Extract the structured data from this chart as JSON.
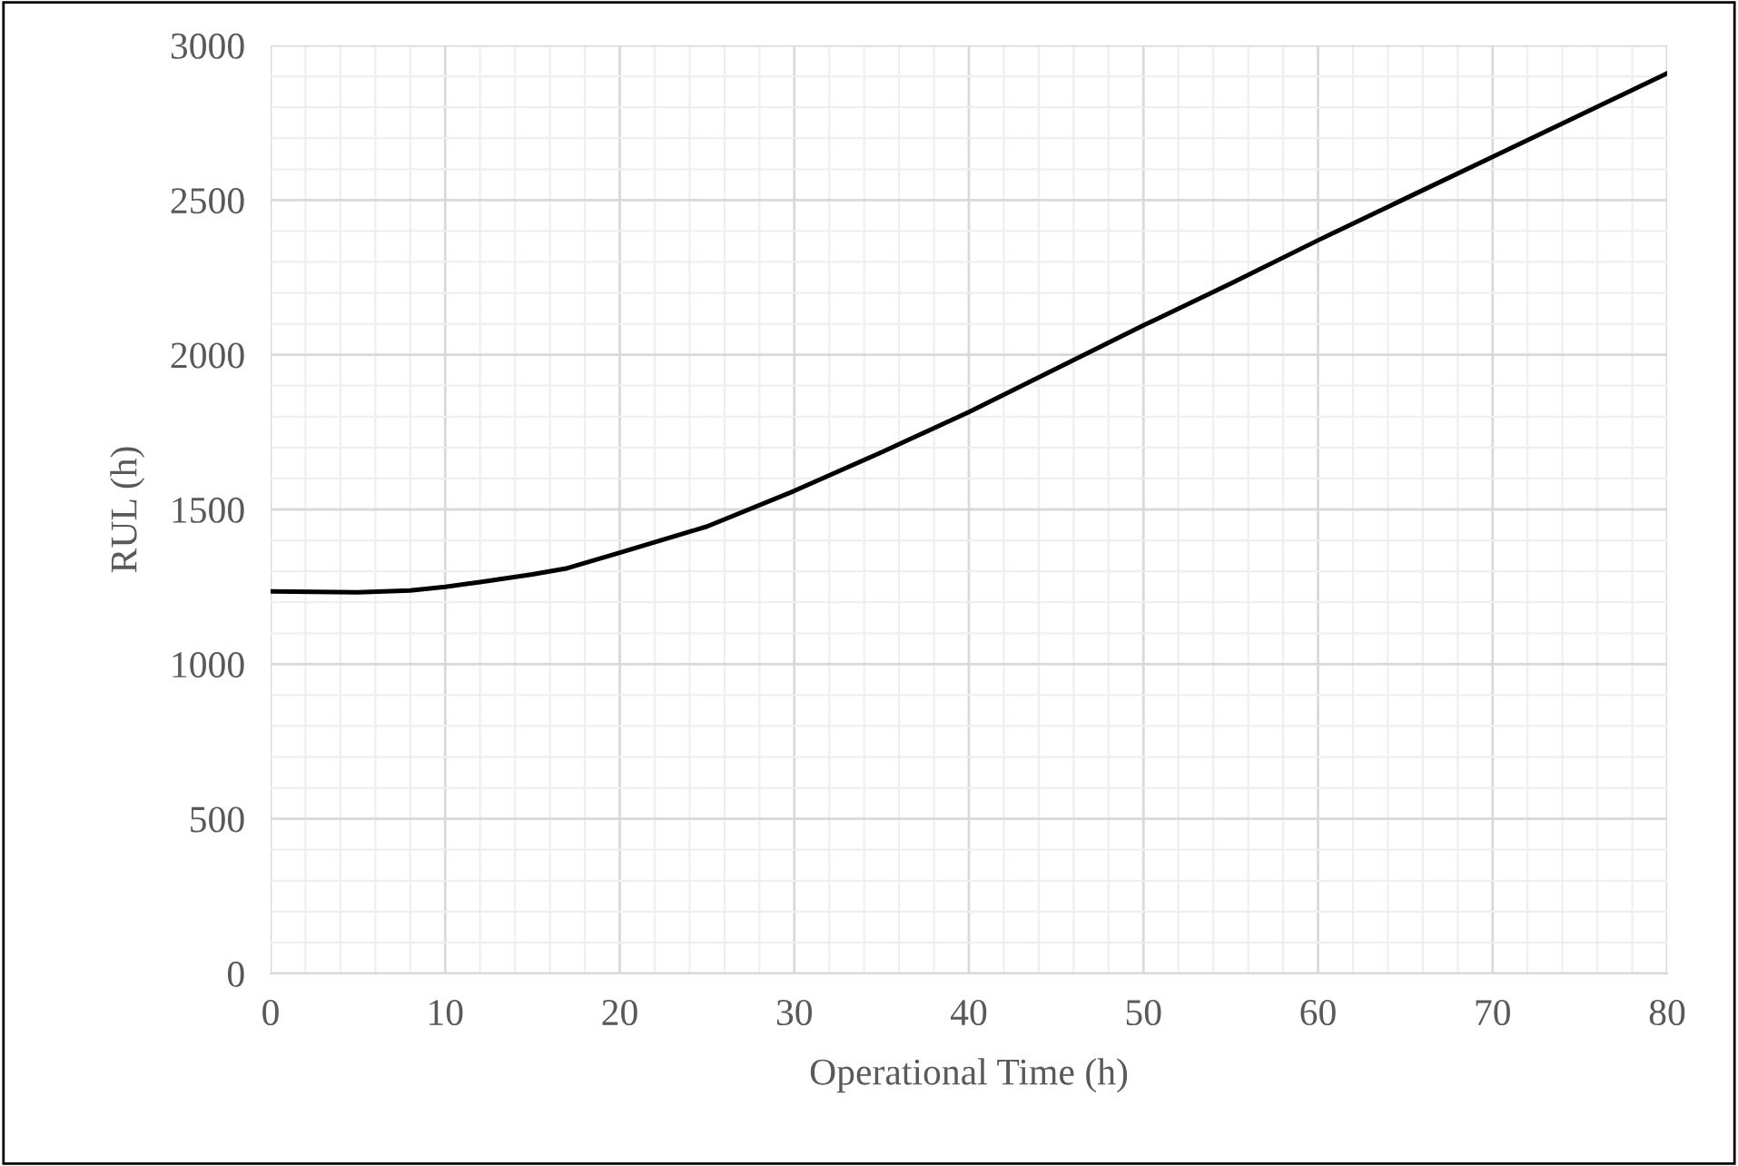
{
  "chart_data": {
    "type": "line",
    "xlabel": "Operational Time (h)",
    "ylabel": "RUL (h)",
    "xlim": [
      0,
      80
    ],
    "ylim": [
      0,
      3000
    ],
    "xticks": [
      0,
      10,
      20,
      30,
      40,
      50,
      60,
      70,
      80
    ],
    "yticks": [
      0,
      500,
      1000,
      1500,
      2000,
      2500,
      3000
    ],
    "grid": true,
    "marker": "none",
    "line_style": "solid",
    "series": [
      {
        "color": "#000000",
        "x": [
          0,
          5,
          8,
          10,
          12,
          15,
          17,
          20,
          25,
          30,
          35,
          40,
          45,
          50,
          55,
          60,
          65,
          70,
          75,
          80
        ],
        "values": [
          1235,
          1232,
          1238,
          1250,
          1265,
          1290,
          1310,
          1360,
          1445,
          1560,
          1685,
          1815,
          1955,
          2095,
          2230,
          2370,
          2505,
          2640,
          2775,
          2910
        ]
      }
    ]
  }
}
